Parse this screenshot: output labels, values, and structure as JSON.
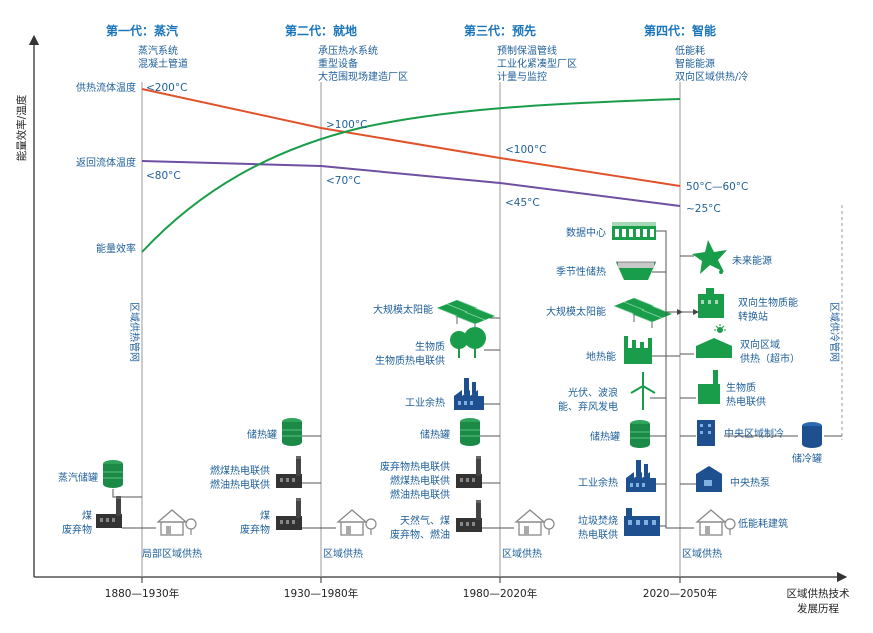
{
  "y_axis_label": "能量效率/温度",
  "x_axis_label": [
    "区域供热技术",
    "发展历程"
  ],
  "generations": [
    {
      "title": "第一代：蒸汽",
      "features": [
        "蒸汽系统",
        "混凝土管道"
      ],
      "period": "1880—1930年",
      "bottom_label": "局部区域供热"
    },
    {
      "title": "第二代：就地",
      "features": [
        "承压热水系统",
        "重型设备",
        "大范围现场建造厂区"
      ],
      "period": "1930—1980年",
      "bottom_label": "区域供热"
    },
    {
      "title": "第三代：预先",
      "features": [
        "预制保温管线",
        "工业化紧凑型厂区",
        "计量与监控"
      ],
      "period": "1980—2020年",
      "bottom_label": "区域供热"
    },
    {
      "title": "第四代：智能",
      "features": [
        "低能耗",
        "智能能源",
        "双向区域供热/冷"
      ],
      "period": "2020—2050年",
      "bottom_label": "区域供热"
    }
  ],
  "left_labels": {
    "supply": "供热流体温度",
    "return": "返回流体温度",
    "efficiency": "能量效率"
  },
  "temps": {
    "supply": [
      "<200°C",
      ">100°C",
      "<100°C",
      "50°C—60°C"
    ],
    "return": [
      "<80°C",
      "<70°C",
      "<45°C",
      "~25°C"
    ]
  },
  "vertical_labels": {
    "heating_net": "区域供热管网",
    "cooling_net": "区域供冷管网"
  },
  "gen1_items": [
    "蒸汽储罐",
    "煤",
    "废弃物"
  ],
  "gen2_items": [
    "储热罐",
    "燃煤热电联供",
    "燃油热电联供",
    "煤",
    "废弃物"
  ],
  "gen3_items": [
    "大规模太阳能",
    "生物质",
    "生物质热电联供",
    "工业余热",
    "储热罐",
    "废弃物热电联供",
    "燃煤热电联供",
    "燃油热电联供",
    "天然气、煤",
    "废弃物、燃油"
  ],
  "gen4_left_items": [
    "数据中心",
    "季节性储热",
    "大规模太阳能",
    "地热能",
    "光伏、波浪",
    "能、弃风发电",
    "储热罐",
    "工业余热",
    "垃圾焚烧",
    "热电联供"
  ],
  "gen4_right_items": [
    "未来能源",
    "双向生物质能",
    "转换站",
    "双向区域",
    "供热（超市）",
    "生物质",
    "热电联供",
    "中央区域制冷",
    "储冷罐",
    "中央热泵",
    "低能耗建筑"
  ],
  "colors": {
    "blue": "#1a75bb",
    "green": "#1a9d4a",
    "red": "#e0522b",
    "purple": "#6e4fa3",
    "navy": "#1e4f8f"
  }
}
